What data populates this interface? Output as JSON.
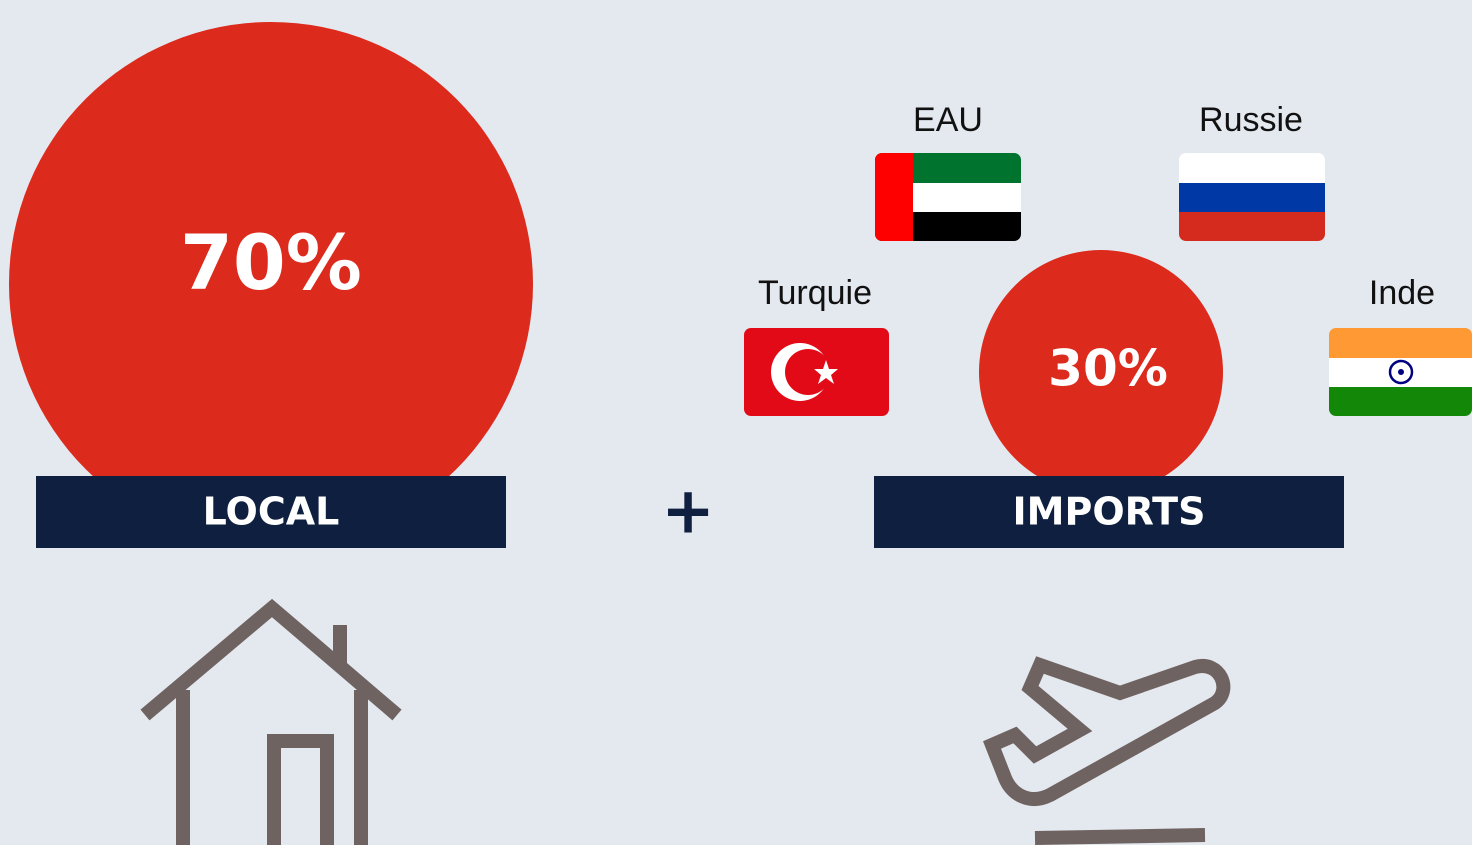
{
  "local": {
    "percent": "70%",
    "label": "LOCAL"
  },
  "plus": "+",
  "imports": {
    "percent": "30%",
    "label": "IMPORTS",
    "countries": [
      "EAU",
      "Russie",
      "Turquie",
      "Inde"
    ]
  }
}
